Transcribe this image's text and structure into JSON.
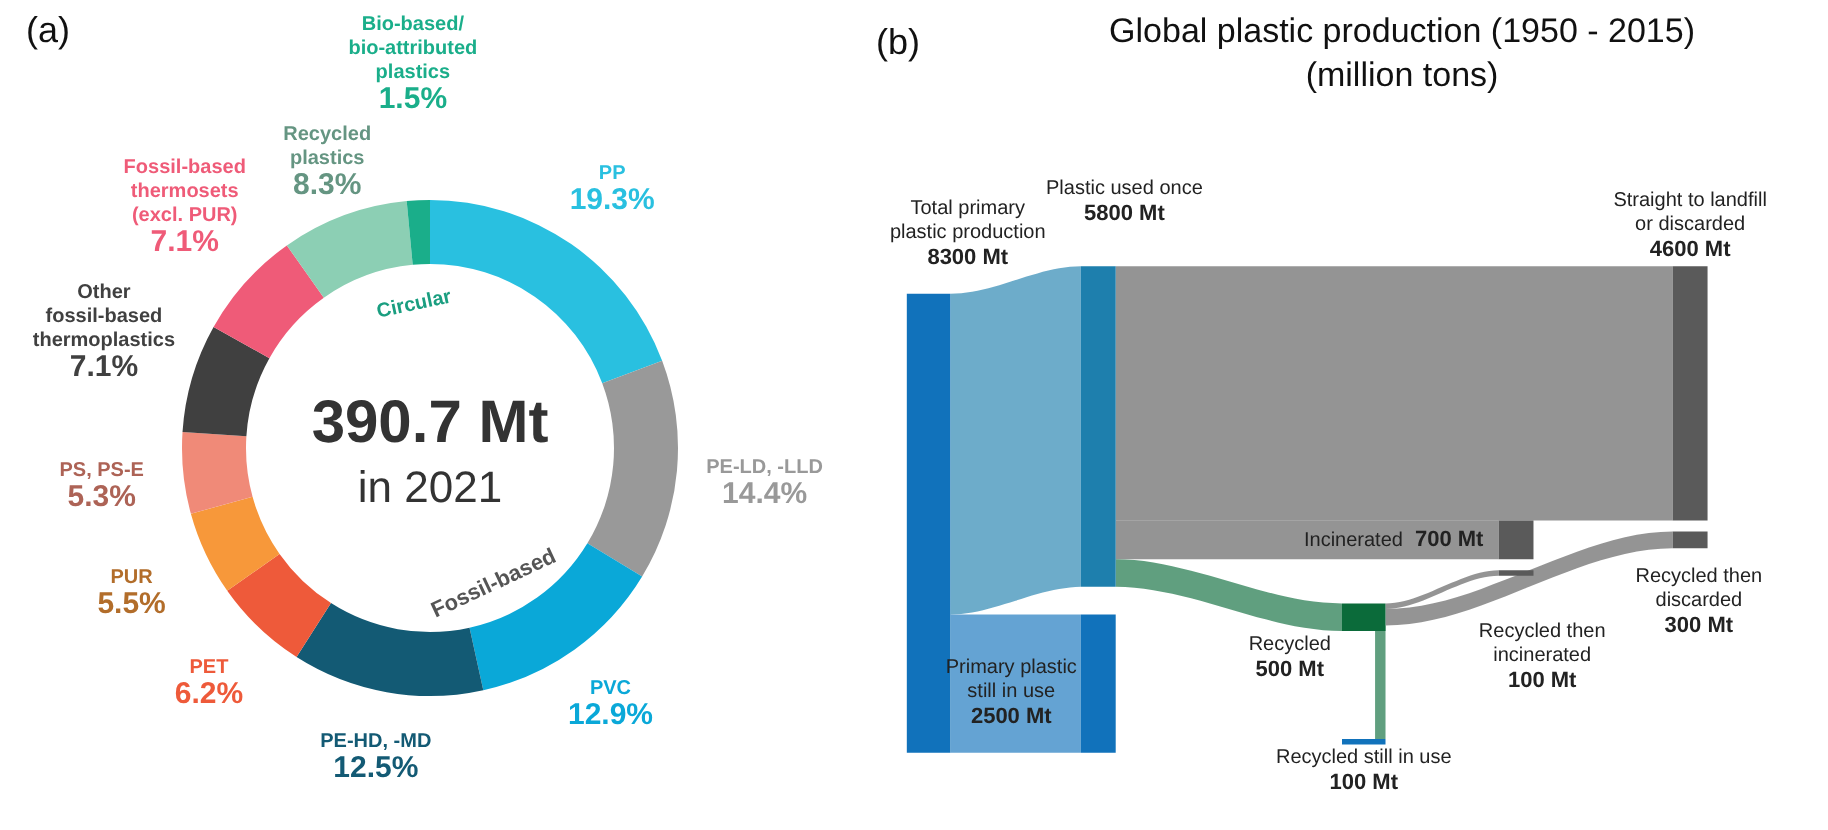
{
  "chart_data": [
    {
      "type": "donut",
      "categories": [
        "PP",
        "PE-LD, -LLD",
        "PVC",
        "PE-HD, -MD",
        "PET",
        "PUR",
        "PS, PS-E",
        "Other fossil-based thermoplastics",
        "Fossil-based thermosets (excl. PUR)",
        "Recycled plastics",
        "Bio-based/ bio-attributed plastics"
      ],
      "values": [
        19.3,
        14.4,
        12.9,
        12.5,
        6.2,
        5.5,
        5.3,
        7.1,
        7.1,
        8.3,
        1.5
      ],
      "colors": [
        "#29c0e0",
        "#999999",
        "#0aa8d8",
        "#135a74",
        "#ee5a3a",
        "#f7983a",
        "#f08a78",
        "#404040",
        "#ef5b78",
        "#8ccfb4",
        "#1aae8a"
      ],
      "value_labels": [
        "19.3%",
        "14.4%",
        "12.9%",
        "12.5%",
        "6.2%",
        "5.5%",
        "5.3%",
        "7.1%",
        "7.1%",
        "8.3%",
        "1.5%"
      ],
      "annotations": [
        "(a)",
        "390.7 Mt",
        "in 2021",
        "Circular",
        "Fossil-based"
      ]
    },
    {
      "type": "other",
      "title": "Global plastic production (1950 - 2015) (million tons)",
      "categories": [
        "Total primary plastic production",
        "Plastic used once",
        "Primary plastic still in use",
        "Straight to landfill or discarded",
        "Incinerated",
        "Recycled",
        "Recycled then incinerated",
        "Recycled then discarded",
        "Recycled still in use"
      ],
      "values": [
        8300,
        5800,
        2500,
        4600,
        700,
        500,
        100,
        300,
        100
      ],
      "value_labels": [
        "8300 Mt",
        "5800 Mt",
        "2500 Mt",
        "4600 Mt",
        "700 Mt",
        "500 Mt",
        "100 Mt",
        "300 Mt",
        "100 Mt"
      ],
      "colors": [
        "#1172bb",
        "#1e7fad",
        "#1172bb",
        "#5a5a5a",
        "#5a5a5a",
        "#0b6b3a",
        "#5a5a5a",
        "#5a5a5a",
        "#1172bb"
      ],
      "annotations": [
        "(b)"
      ]
    }
  ]
}
